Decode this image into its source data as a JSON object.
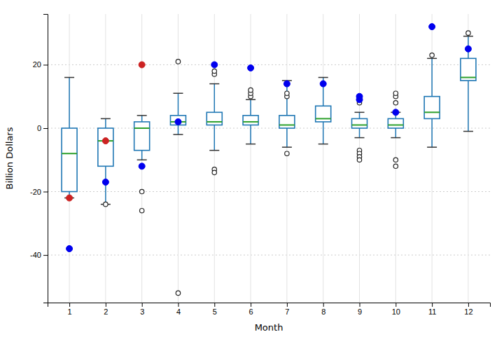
{
  "chart_data": {
    "type": "box",
    "xlabel": "Month",
    "ylabel": "Billion Dollars",
    "x": [
      1,
      2,
      3,
      4,
      5,
      6,
      7,
      8,
      9,
      10,
      11,
      12
    ],
    "q1": [
      -20,
      -12,
      -7,
      1,
      1,
      1,
      0,
      2,
      0,
      0,
      3,
      15
    ],
    "median": [
      -8,
      -4,
      0,
      2,
      2,
      2,
      1,
      3,
      1,
      1,
      5,
      16
    ],
    "q3": [
      0,
      0,
      2,
      4,
      5,
      4,
      4,
      7,
      3,
      3,
      10,
      22
    ],
    "whislo": [
      -22,
      -24,
      -10,
      -2,
      -7,
      -5,
      -6,
      -5,
      -3,
      -3,
      -6,
      -1
    ],
    "whishi": [
      16,
      3,
      4,
      11,
      14,
      9,
      15,
      16,
      5,
      5,
      22,
      29
    ],
    "outliers": [
      {
        "color": "#0000ee",
        "marker": "filled",
        "values": [
          [
            -38
          ],
          [
            -17
          ],
          [
            -12
          ],
          [
            2
          ],
          [
            20
          ],
          [
            19
          ],
          [
            14
          ],
          [
            14
          ],
          [
            9,
            10
          ],
          [
            5
          ],
          [
            32
          ],
          [
            25
          ]
        ]
      },
      {
        "color": "#cc2222",
        "marker": "filled",
        "values": [
          [
            -22
          ],
          [
            -4
          ],
          [
            20
          ],
          [],
          [],
          [],
          [],
          [],
          [],
          [],
          [],
          []
        ]
      },
      {
        "color": "#222222",
        "marker": "open",
        "values": [
          [],
          [
            -24
          ],
          [
            -20,
            -26
          ],
          [
            -52,
            21
          ],
          [
            -13,
            -14,
            17,
            18
          ],
          [
            10,
            11,
            12
          ],
          [
            10,
            11,
            -8
          ],
          [],
          [
            -7,
            -8,
            -9,
            -10,
            8
          ],
          [
            -10,
            -12,
            8,
            10,
            11
          ],
          [
            23
          ],
          [
            30
          ]
        ]
      }
    ],
    "xlim": [
      0.4,
      12.6
    ],
    "xticks": [
      1,
      2,
      3,
      4,
      5,
      6,
      7,
      8,
      9,
      10,
      11,
      12
    ],
    "ylim": [
      -55,
      36
    ],
    "yticks": [
      -40,
      -20,
      0,
      20
    ],
    "grid": true
  }
}
